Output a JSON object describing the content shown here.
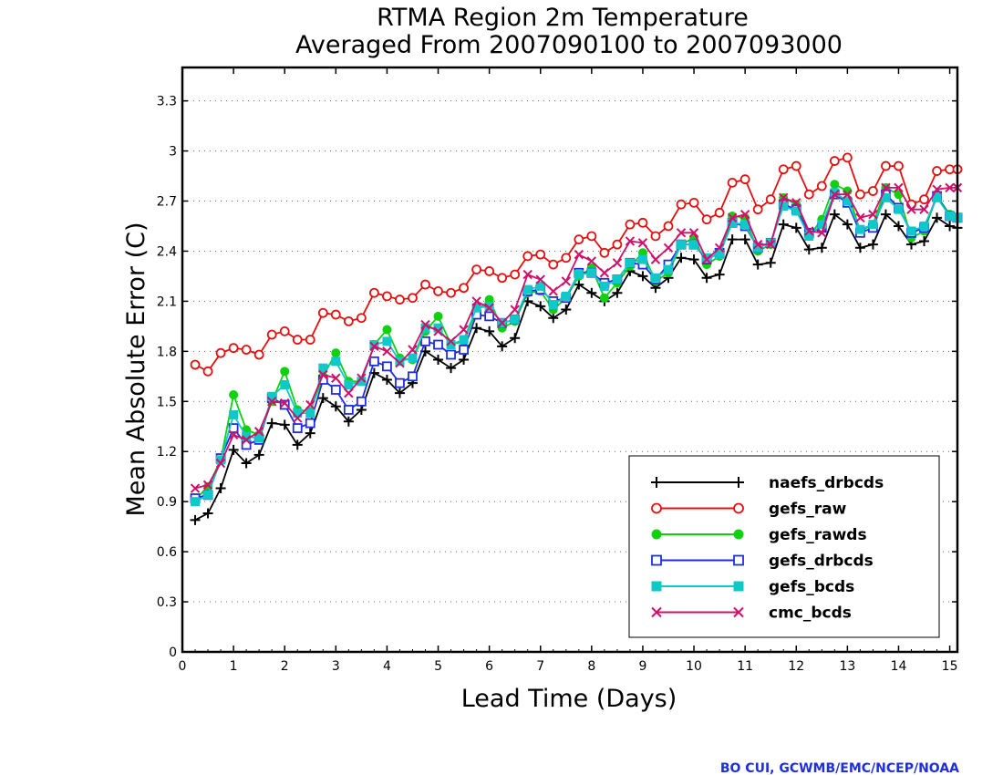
{
  "chart_data": {
    "type": "line",
    "title": "RTMA Region 2m Temperature",
    "subtitle": "Averaged From 2007090100 to 2007093000",
    "xlabel": "Lead Time (Days)",
    "ylabel": "Mean Absolute Error (C)",
    "xlim": [
      0,
      15.15
    ],
    "ylim": [
      0,
      3.5
    ],
    "xticks": [
      0,
      1,
      2,
      3,
      4,
      5,
      6,
      7,
      8,
      9,
      10,
      11,
      12,
      13,
      14,
      15
    ],
    "yticks": [
      0,
      0.3,
      0.6,
      0.9,
      1.2,
      1.5,
      1.8,
      2.1,
      2.4,
      2.7,
      3,
      3.3
    ],
    "ytick_labels": [
      "0",
      "0.3",
      "0.6",
      "0.9",
      "1.2",
      "1.5",
      "1.8",
      "2.1",
      "2.4",
      "2.7",
      "3",
      "3.3"
    ],
    "grid": "horizontal dotted",
    "legend_position": "lower-right",
    "x": [
      0.25,
      0.5,
      0.75,
      1,
      1.25,
      1.5,
      1.75,
      2,
      2.25,
      2.5,
      2.75,
      3,
      3.25,
      3.5,
      3.75,
      4,
      4.25,
      4.5,
      4.75,
      5,
      5.25,
      5.5,
      5.75,
      6,
      6.25,
      6.5,
      6.75,
      7,
      7.25,
      7.5,
      7.75,
      8,
      8.25,
      8.5,
      8.75,
      9,
      9.25,
      9.5,
      9.75,
      10,
      10.25,
      10.5,
      10.75,
      11,
      11.25,
      11.5,
      11.75,
      12,
      12.25,
      12.5,
      12.75,
      13,
      13.25,
      13.5,
      13.75,
      14,
      14.25,
      14.5,
      14.75,
      15,
      15.15
    ],
    "series": [
      {
        "name": "naefs_drbcds",
        "color": "#000000",
        "marker": "plus",
        "values": [
          0.79,
          0.83,
          0.98,
          1.21,
          1.13,
          1.18,
          1.37,
          1.36,
          1.24,
          1.31,
          1.52,
          1.47,
          1.38,
          1.45,
          1.67,
          1.63,
          1.55,
          1.61,
          1.8,
          1.75,
          1.7,
          1.75,
          1.94,
          1.92,
          1.83,
          1.88,
          2.1,
          2.07,
          2.0,
          2.05,
          2.2,
          2.15,
          2.1,
          2.15,
          2.28,
          2.25,
          2.18,
          2.24,
          2.36,
          2.35,
          2.24,
          2.26,
          2.47,
          2.47,
          2.32,
          2.33,
          2.56,
          2.54,
          2.41,
          2.42,
          2.62,
          2.56,
          2.42,
          2.44,
          2.62,
          2.55,
          2.44,
          2.46,
          2.6,
          2.55,
          2.54
        ]
      },
      {
        "name": "gefs_raw",
        "color": "#e31010",
        "marker": "circle-open",
        "values": [
          1.72,
          1.68,
          1.79,
          1.82,
          1.81,
          1.78,
          1.9,
          1.92,
          1.87,
          1.87,
          2.03,
          2.02,
          1.98,
          2.0,
          2.15,
          2.13,
          2.11,
          2.12,
          2.2,
          2.16,
          2.15,
          2.18,
          2.29,
          2.28,
          2.24,
          2.26,
          2.37,
          2.38,
          2.32,
          2.36,
          2.47,
          2.49,
          2.39,
          2.44,
          2.56,
          2.57,
          2.49,
          2.55,
          2.68,
          2.69,
          2.59,
          2.63,
          2.81,
          2.83,
          2.65,
          2.71,
          2.89,
          2.91,
          2.74,
          2.79,
          2.94,
          2.96,
          2.74,
          2.76,
          2.91,
          2.91,
          2.68,
          2.71,
          2.88,
          2.89,
          2.89
        ]
      },
      {
        "name": "gefs_rawds",
        "color": "#10d010",
        "marker": "circle-filled",
        "values": [
          0.91,
          0.99,
          1.15,
          1.54,
          1.33,
          1.3,
          1.5,
          1.68,
          1.45,
          1.44,
          1.65,
          1.79,
          1.62,
          1.62,
          1.84,
          1.93,
          1.76,
          1.75,
          1.92,
          2.01,
          1.84,
          1.86,
          2.04,
          2.11,
          1.94,
          1.98,
          2.15,
          2.16,
          2.05,
          2.12,
          2.25,
          2.3,
          2.12,
          2.21,
          2.31,
          2.39,
          2.22,
          2.27,
          2.44,
          2.48,
          2.32,
          2.37,
          2.61,
          2.6,
          2.4,
          2.44,
          2.72,
          2.68,
          2.49,
          2.59,
          2.8,
          2.76,
          2.52,
          2.56,
          2.78,
          2.74,
          2.48,
          2.52,
          2.73,
          2.62,
          2.6
        ]
      },
      {
        "name": "gefs_drbcds",
        "color": "#1f2fe0",
        "marker": "square-open",
        "values": [
          0.92,
          0.94,
          1.16,
          1.34,
          1.24,
          1.27,
          1.52,
          1.48,
          1.34,
          1.37,
          1.63,
          1.57,
          1.45,
          1.5,
          1.74,
          1.71,
          1.61,
          1.65,
          1.86,
          1.84,
          1.78,
          1.81,
          2.02,
          2.01,
          1.97,
          1.99,
          2.16,
          2.17,
          2.1,
          2.12,
          2.27,
          2.27,
          2.21,
          2.23,
          2.33,
          2.32,
          2.23,
          2.32,
          2.44,
          2.44,
          2.35,
          2.39,
          2.57,
          2.55,
          2.42,
          2.45,
          2.68,
          2.65,
          2.51,
          2.54,
          2.74,
          2.69,
          2.51,
          2.54,
          2.74,
          2.66,
          2.51,
          2.54,
          2.73,
          2.61,
          2.6
        ]
      },
      {
        "name": "gefs_bcds",
        "color": "#10c8c8",
        "marker": "square-filled",
        "values": [
          0.9,
          0.94,
          1.15,
          1.42,
          1.29,
          1.28,
          1.53,
          1.6,
          1.43,
          1.43,
          1.7,
          1.74,
          1.6,
          1.62,
          1.84,
          1.86,
          1.74,
          1.76,
          1.94,
          1.94,
          1.84,
          1.87,
          2.06,
          2.07,
          1.97,
          1.99,
          2.17,
          2.19,
          2.08,
          2.13,
          2.26,
          2.27,
          2.19,
          2.23,
          2.33,
          2.35,
          2.24,
          2.29,
          2.44,
          2.44,
          2.36,
          2.38,
          2.57,
          2.56,
          2.42,
          2.45,
          2.67,
          2.64,
          2.49,
          2.56,
          2.75,
          2.7,
          2.53,
          2.56,
          2.72,
          2.65,
          2.52,
          2.55,
          2.72,
          2.61,
          2.6
        ]
      },
      {
        "name": "cmc_bcds",
        "color": "#d0106a",
        "marker": "cross",
        "values": [
          0.98,
          1.0,
          1.13,
          1.3,
          1.27,
          1.32,
          1.5,
          1.49,
          1.4,
          1.48,
          1.66,
          1.64,
          1.55,
          1.64,
          1.83,
          1.8,
          1.73,
          1.81,
          1.96,
          1.92,
          1.86,
          1.93,
          2.1,
          2.06,
          1.97,
          2.05,
          2.26,
          2.23,
          2.16,
          2.22,
          2.38,
          2.34,
          2.27,
          2.33,
          2.46,
          2.45,
          2.35,
          2.42,
          2.51,
          2.51,
          2.35,
          2.42,
          2.6,
          2.62,
          2.44,
          2.44,
          2.72,
          2.69,
          2.52,
          2.51,
          2.74,
          2.74,
          2.6,
          2.62,
          2.78,
          2.78,
          2.65,
          2.65,
          2.77,
          2.78,
          2.78
        ]
      }
    ]
  },
  "credit": "BO CUI, GCWMB/EMC/NCEP/NOAA"
}
